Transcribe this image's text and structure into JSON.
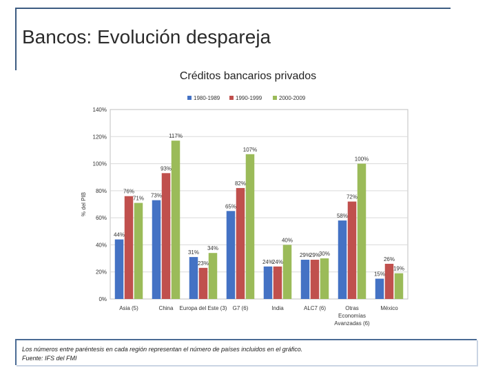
{
  "slide": {
    "title": "Bancos: Evolución despareja",
    "footnote": "Los números entre paréntesis en cada región representan el número de países incluidos en el gráfico.",
    "source": "Fuente: IFS del FMI"
  },
  "chart_data": {
    "type": "bar",
    "title": "Créditos bancarios privados",
    "ylabel": "% del PIB",
    "xlabel": "",
    "ylim": [
      0,
      140
    ],
    "yticks": [
      "0%",
      "20%",
      "40%",
      "60%",
      "80%",
      "100%",
      "120%",
      "140%"
    ],
    "legend_position": "top",
    "categories": [
      "Asia (5)",
      "China",
      "Europa del Este (3)",
      "G7 (6)",
      "India",
      "ALC7 (6)",
      "Otras Economías Avanzadas (6)",
      "México"
    ],
    "series": [
      {
        "name": "1980-1989",
        "color": "#4472c4",
        "values": [
          44,
          73,
          31,
          65,
          24,
          29,
          58,
          15
        ],
        "labels": [
          "44%",
          "73%",
          "31%",
          "65%",
          "24%",
          "29%",
          "58%",
          "15%"
        ]
      },
      {
        "name": "1990-1999",
        "color": "#c0504d",
        "values": [
          76,
          93,
          23,
          82,
          24,
          29,
          72,
          26
        ],
        "labels": [
          "76%",
          "93%",
          "23%",
          "82%",
          "24%",
          "29%",
          "72%",
          "26%"
        ]
      },
      {
        "name": "2000-2009",
        "color": "#9bbb59",
        "values": [
          71,
          117,
          34,
          107,
          40,
          30,
          100,
          19
        ],
        "labels": [
          "71%",
          "117%",
          "34%",
          "107%",
          "40%",
          "30%",
          "100%",
          "19%"
        ]
      }
    ]
  }
}
